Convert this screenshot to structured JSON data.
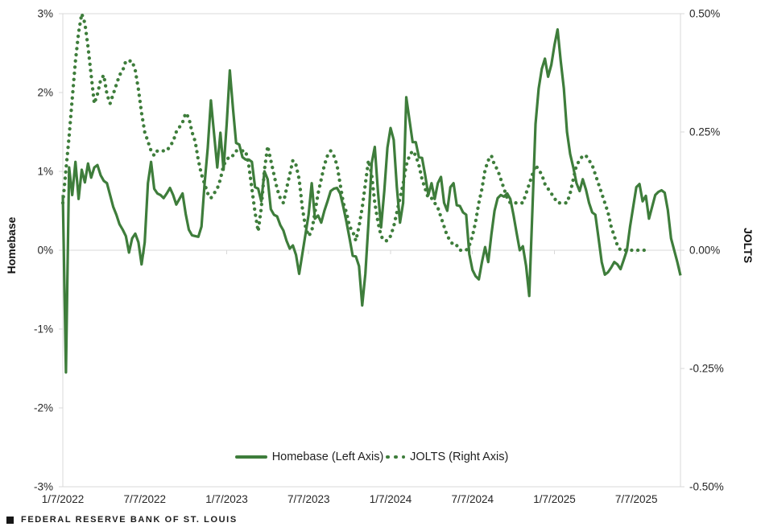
{
  "footer": {
    "icon": "black-square",
    "text": "FEDERAL RESERVE BANK OF ST. LOUIS"
  },
  "colors": {
    "series_green": "#3E7D3B",
    "grid_line": "#D9D9D9",
    "tick_mark": "#C9C9C9",
    "tick_text": "#262626"
  },
  "chart_data": {
    "type": "line",
    "title": "",
    "x_start": "1/7/2022",
    "x_interval": "weekly",
    "x_tick_labels": [
      "1/7/2022",
      "7/7/2022",
      "1/7/2023",
      "7/7/2023",
      "1/7/2024",
      "7/7/2024",
      "1/7/2025",
      "7/7/2025"
    ],
    "x_tick_indices": [
      0,
      26,
      52,
      78,
      104,
      130,
      156,
      182
    ],
    "left_axis": {
      "label": "Homebase",
      "min": -3,
      "max": 3,
      "tick_step": 1,
      "ticks": [
        "3%",
        "2%",
        "1%",
        "0%",
        "-1%",
        "-2%",
        "-3%"
      ]
    },
    "right_axis": {
      "label": "JOLTS",
      "min": -0.5,
      "max": 0.5,
      "tick_step": 0.25,
      "ticks": [
        "0.50%",
        "0.25%",
        "0.00%",
        "-0.25%",
        "-0.50%"
      ]
    },
    "grid": {
      "zero_line": true,
      "top_border": true,
      "bottom_border": true,
      "legend_position": "bottom-center"
    },
    "series": [
      {
        "name": "Homebase (Left Axis)",
        "axis": "left",
        "style": "solid",
        "color": "#3E7D3B",
        "values": [
          0.7,
          -1.55,
          1.05,
          0.7,
          1.12,
          0.65,
          1.02,
          0.86,
          1.1,
          0.92,
          1.05,
          1.08,
          0.95,
          0.88,
          0.85,
          0.7,
          0.55,
          0.45,
          0.33,
          0.26,
          0.18,
          -0.03,
          0.15,
          0.21,
          0.1,
          -0.18,
          0.1,
          0.85,
          1.12,
          0.78,
          0.72,
          0.7,
          0.66,
          0.72,
          0.79,
          0.7,
          0.58,
          0.65,
          0.72,
          0.46,
          0.26,
          0.19,
          0.18,
          0.17,
          0.3,
          0.85,
          1.3,
          1.9,
          1.48,
          1.05,
          1.49,
          1.02,
          1.6,
          2.28,
          1.8,
          1.36,
          1.34,
          1.18,
          1.15,
          1.15,
          1.12,
          0.8,
          0.78,
          0.62,
          1.0,
          0.9,
          0.52,
          0.45,
          0.43,
          0.32,
          0.25,
          0.12,
          0.02,
          0.06,
          -0.06,
          -0.3,
          -0.05,
          0.2,
          0.45,
          0.85,
          0.4,
          0.44,
          0.35,
          0.5,
          0.62,
          0.75,
          0.78,
          0.79,
          0.72,
          0.55,
          0.36,
          0.15,
          -0.07,
          -0.08,
          -0.2,
          -0.7,
          -0.3,
          0.35,
          1.1,
          1.31,
          0.75,
          0.29,
          0.75,
          1.3,
          1.55,
          1.4,
          0.8,
          0.35,
          0.6,
          1.94,
          1.65,
          1.37,
          1.37,
          1.18,
          1.17,
          0.95,
          0.7,
          0.85,
          0.65,
          0.85,
          0.93,
          0.6,
          0.5,
          0.8,
          0.85,
          0.57,
          0.56,
          0.48,
          0.45,
          -0.05,
          -0.25,
          -0.33,
          -0.37,
          -0.15,
          0.04,
          -0.15,
          0.2,
          0.5,
          0.66,
          0.7,
          0.68,
          0.72,
          0.65,
          0.45,
          0.22,
          0.0,
          0.05,
          -0.2,
          -0.58,
          0.5,
          1.6,
          2.05,
          2.3,
          2.43,
          2.2,
          2.35,
          2.6,
          2.8,
          2.4,
          2.05,
          1.5,
          1.22,
          1.05,
          0.85,
          0.75,
          0.9,
          0.77,
          0.6,
          0.48,
          0.45,
          0.15,
          -0.15,
          -0.31,
          -0.28,
          -0.22,
          -0.15,
          -0.18,
          -0.24,
          -0.12,
          0.0,
          0.3,
          0.55,
          0.8,
          0.84,
          0.62,
          0.69,
          0.4,
          0.55,
          0.7,
          0.74,
          0.76,
          0.73,
          0.51,
          0.15,
          0.0,
          -0.15,
          -0.32
        ]
      },
      {
        "name": "JOLTS (Right Axis)",
        "axis": "right",
        "style": "dotted",
        "color": "#3E7D3B",
        "values": [
          0.1,
          0.17,
          0.24,
          0.32,
          0.4,
          0.46,
          0.5,
          0.48,
          0.43,
          0.37,
          0.31,
          0.33,
          0.36,
          0.37,
          0.33,
          0.31,
          0.33,
          0.35,
          0.37,
          0.38,
          0.4,
          0.4,
          0.4,
          0.38,
          0.34,
          0.29,
          0.25,
          0.23,
          0.21,
          0.2,
          0.21,
          0.21,
          0.21,
          0.21,
          0.22,
          0.23,
          0.25,
          0.26,
          0.27,
          0.29,
          0.28,
          0.25,
          0.23,
          0.19,
          0.16,
          0.14,
          0.12,
          0.11,
          0.12,
          0.13,
          0.15,
          0.18,
          0.19,
          0.2,
          0.2,
          0.21,
          0.21,
          0.21,
          0.21,
          0.18,
          0.13,
          0.08,
          0.04,
          0.09,
          0.17,
          0.22,
          0.19,
          0.16,
          0.13,
          0.11,
          0.1,
          0.13,
          0.16,
          0.19,
          0.18,
          0.15,
          0.09,
          0.05,
          0.03,
          0.04,
          0.08,
          0.12,
          0.15,
          0.18,
          0.2,
          0.21,
          0.2,
          0.18,
          0.14,
          0.1,
          0.08,
          0.05,
          0.04,
          0.02,
          0.05,
          0.09,
          0.14,
          0.19,
          0.16,
          0.1,
          0.06,
          0.03,
          0.02,
          0.02,
          0.03,
          0.05,
          0.08,
          0.11,
          0.14,
          0.18,
          0.2,
          0.21,
          0.2,
          0.18,
          0.15,
          0.13,
          0.11,
          0.11,
          0.1,
          0.09,
          0.07,
          0.05,
          0.03,
          0.02,
          0.01,
          0.01,
          0.0,
          0.0,
          0.0,
          0.01,
          0.03,
          0.06,
          0.1,
          0.13,
          0.17,
          0.19,
          0.2,
          0.18,
          0.17,
          0.15,
          0.13,
          0.11,
          0.1,
          0.1,
          0.1,
          0.1,
          0.1,
          0.12,
          0.14,
          0.16,
          0.18,
          0.17,
          0.16,
          0.14,
          0.13,
          0.12,
          0.11,
          0.1,
          0.1,
          0.1,
          0.1,
          0.12,
          0.15,
          0.18,
          0.19,
          0.2,
          0.2,
          0.19,
          0.18,
          0.16,
          0.14,
          0.12,
          0.1,
          0.08,
          0.05,
          0.03,
          0.01,
          0.0,
          0.0,
          0.0,
          0.0,
          0.0,
          0.0,
          0.0,
          0.0,
          0.0,
          null,
          null,
          null,
          null,
          null,
          null,
          null,
          null,
          null,
          null,
          null
        ]
      }
    ]
  }
}
